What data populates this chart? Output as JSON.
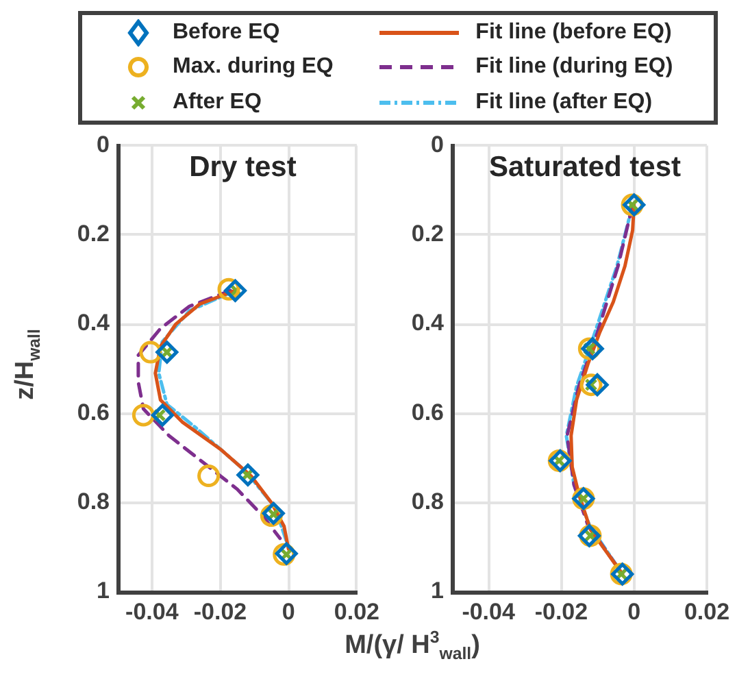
{
  "chart_data": [
    {
      "type": "scatter",
      "title": "Dry test",
      "ylabel": "z/H$_{wall}$",
      "xlim": [
        -0.05,
        0.02
      ],
      "xticks": [
        -0.04,
        -0.02,
        0,
        0.02
      ],
      "ylim": [
        1,
        0
      ],
      "yticks": [
        0,
        0.2,
        0.4,
        0.6,
        0.8,
        1
      ],
      "grid": true,
      "legend": "top",
      "series": [
        {
          "name": "Before EQ",
          "type": "scatter",
          "marker": "diamond",
          "color": "#0072bd",
          "x": [
            -0.0156,
            -0.0356,
            -0.0369,
            -0.0119,
            -0.0044,
            -0.0006
          ],
          "values": [
            0.325,
            0.463,
            0.604,
            0.738,
            0.824,
            0.914
          ]
        },
        {
          "name": "Max. during EQ",
          "type": "scatter",
          "marker": "circle",
          "color": "#edb120",
          "x": [
            -0.0175,
            -0.0404,
            -0.0425,
            -0.0234,
            -0.005,
            -0.0013
          ],
          "values": [
            0.322,
            0.463,
            0.604,
            0.74,
            0.829,
            0.916
          ]
        },
        {
          "name": "After EQ",
          "type": "scatter",
          "marker": "cross",
          "color": "#77ac30",
          "x": [
            -0.0153,
            -0.0356,
            -0.0378,
            -0.0121,
            -0.0044,
            -0.0006
          ],
          "values": [
            0.325,
            0.463,
            0.604,
            0.738,
            0.826,
            0.916
          ]
        },
        {
          "name": "Fit line (before EQ)",
          "type": "line",
          "line_style": "solid",
          "color": "#d95319",
          "x": [
            -0.0156,
            -0.026,
            -0.033,
            -0.0375,
            -0.039,
            -0.0375,
            -0.031,
            -0.02,
            -0.011,
            -0.005,
            -0.0013,
            0
          ],
          "values": [
            0.325,
            0.355,
            0.4,
            0.45,
            0.51,
            0.57,
            0.62,
            0.68,
            0.74,
            0.8,
            0.853,
            0.904
          ]
        },
        {
          "name": "Fit line (during EQ)",
          "type": "line",
          "line_style": "dashed",
          "color": "#7e2f8e",
          "x": [
            -0.017,
            -0.029,
            -0.0375,
            -0.044,
            -0.044,
            -0.0425,
            -0.035,
            -0.025,
            -0.015,
            -0.0075,
            -0.0025
          ],
          "values": [
            0.325,
            0.36,
            0.41,
            0.47,
            0.53,
            0.59,
            0.65,
            0.71,
            0.77,
            0.83,
            0.88
          ]
        },
        {
          "name": "Fit line (after EQ)",
          "type": "line",
          "line_style": "dotted",
          "color": "#4dbeee",
          "x": [
            -0.0156,
            -0.029,
            -0.037,
            -0.038,
            -0.0356,
            -0.0275,
            -0.0125,
            -0.004,
            0
          ],
          "values": [
            0.325,
            0.37,
            0.44,
            0.51,
            0.58,
            0.63,
            0.73,
            0.81,
            0.9
          ]
        }
      ]
    },
    {
      "type": "scatter",
      "title": "Saturated test",
      "xlabel": "M/(γ/ H$^{3}$$_{wall}$)",
      "xlim": [
        -0.05,
        0.02
      ],
      "xticks": [
        -0.04,
        -0.02,
        0,
        0.02
      ],
      "ylim": [
        1,
        0
      ],
      "yticks": [
        0,
        0.2,
        0.4,
        0.6,
        0.8,
        1
      ],
      "grid": true,
      "series": [
        {
          "type": "scatter",
          "marker": "diamond",
          "color": "#0072bd",
          "x": [
            0,
            -0.0114,
            -0.0101,
            -0.0203,
            -0.0139,
            -0.0123,
            -0.0032
          ],
          "values": [
            0.133,
            0.455,
            0.536,
            0.706,
            0.791,
            0.874,
            0.96
          ]
        },
        {
          "type": "scatter",
          "marker": "circle",
          "color": "#edb120",
          "x": [
            -0.0005,
            -0.0123,
            -0.0118,
            -0.0206,
            -0.0139,
            -0.012,
            -0.0035
          ],
          "values": [
            0.133,
            0.455,
            0.536,
            0.706,
            0.791,
            0.874,
            0.96
          ]
        },
        {
          "type": "scatter",
          "marker": "cross",
          "color": "#77ac30",
          "x": [
            -0.0005,
            -0.0123,
            -0.0118,
            -0.0206,
            -0.0139,
            -0.012,
            -0.0035
          ],
          "values": [
            0.133,
            0.455,
            0.536,
            0.706,
            0.791,
            0.874,
            0.96
          ]
        },
        {
          "type": "line",
          "line_style": "solid",
          "color": "#d95319",
          "x": [
            0,
            -0.0004,
            -0.0025,
            -0.0057,
            -0.0095,
            -0.0127,
            -0.0158,
            -0.0173,
            -0.017,
            -0.0152,
            -0.012,
            -0.0032
          ],
          "values": [
            0.133,
            0.19,
            0.27,
            0.35,
            0.42,
            0.49,
            0.57,
            0.65,
            0.72,
            0.78,
            0.86,
            0.96
          ]
        },
        {
          "type": "line",
          "line_style": "dashed",
          "color": "#7e2f8e",
          "x": [
            -0.0004,
            -0.0044,
            -0.0101,
            -0.0152,
            -0.0184,
            -0.0165,
            -0.0127,
            -0.0032
          ],
          "values": [
            0.133,
            0.27,
            0.42,
            0.54,
            0.65,
            0.76,
            0.85,
            0.96
          ]
        },
        {
          "type": "line",
          "line_style": "dotted",
          "color": "#4dbeee",
          "x": [
            -0.0004,
            -0.0047,
            -0.0108,
            -0.0158,
            -0.0186,
            -0.0165,
            -0.0123,
            -0.0032
          ],
          "values": [
            0.133,
            0.27,
            0.42,
            0.54,
            0.65,
            0.76,
            0.85,
            0.96
          ]
        }
      ]
    }
  ]
}
